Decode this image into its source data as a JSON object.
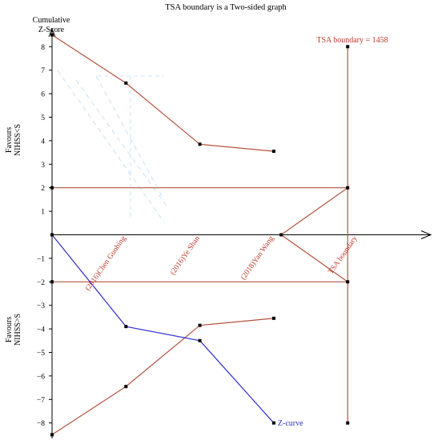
{
  "chart_data": {
    "type": "line",
    "title": "TSA boundary is a Two-sided graph",
    "ylabel_line1": "Cumulative",
    "ylabel_line2": "Z-Score",
    "ylim": [
      -8.5,
      8.5
    ],
    "y_ticks": [
      8,
      7,
      6,
      5,
      4,
      3,
      2,
      1,
      -1,
      -2,
      -3,
      -4,
      -5,
      -6,
      -7,
      -8
    ],
    "x_categories": [
      "(2016)Chen Guobing",
      "(2016)Ye Shan",
      "(2018)Yan Wang",
      "TSA boundary"
    ],
    "x_positions": [
      1,
      2,
      3,
      4
    ],
    "favours_top": [
      "Favours",
      "NIHSS<S"
    ],
    "favours_bottom": [
      "Favours",
      "NIHSS>S"
    ],
    "tsa_label": "TSA boundary = 1458",
    "tsa_x": 4,
    "conventional_boundaries": [
      2,
      -2
    ],
    "upper_monitoring_boundary": [
      {
        "x": 0,
        "y": 8.5
      },
      {
        "x": 1,
        "y": 6.45
      },
      {
        "x": 2,
        "y": 3.85
      },
      {
        "x": 3,
        "y": 3.55
      }
    ],
    "lower_monitoring_boundary": [
      {
        "x": 0,
        "y": -8.5
      },
      {
        "x": 1,
        "y": -6.45
      },
      {
        "x": 2,
        "y": -3.85
      },
      {
        "x": 3,
        "y": -3.55
      }
    ],
    "futility_upper": [
      {
        "x": 3.1,
        "y": 0
      },
      {
        "x": 4,
        "y": 2
      }
    ],
    "futility_lower": [
      {
        "x": 3.1,
        "y": 0
      },
      {
        "x": 4,
        "y": -2
      }
    ],
    "z_curve": {
      "name": "Z-curve",
      "points": [
        {
          "x": 0,
          "y": 0
        },
        {
          "x": 1,
          "y": -3.9
        },
        {
          "x": 2,
          "y": -4.5
        },
        {
          "x": 3,
          "y": -8.0
        }
      ]
    },
    "colors": {
      "boundary": "#b5533f",
      "zcurve": "#2f2fd0",
      "axis": "#000000",
      "label_red": "#c0392b",
      "watermark": "#cfe6f5"
    },
    "grid": false
  }
}
